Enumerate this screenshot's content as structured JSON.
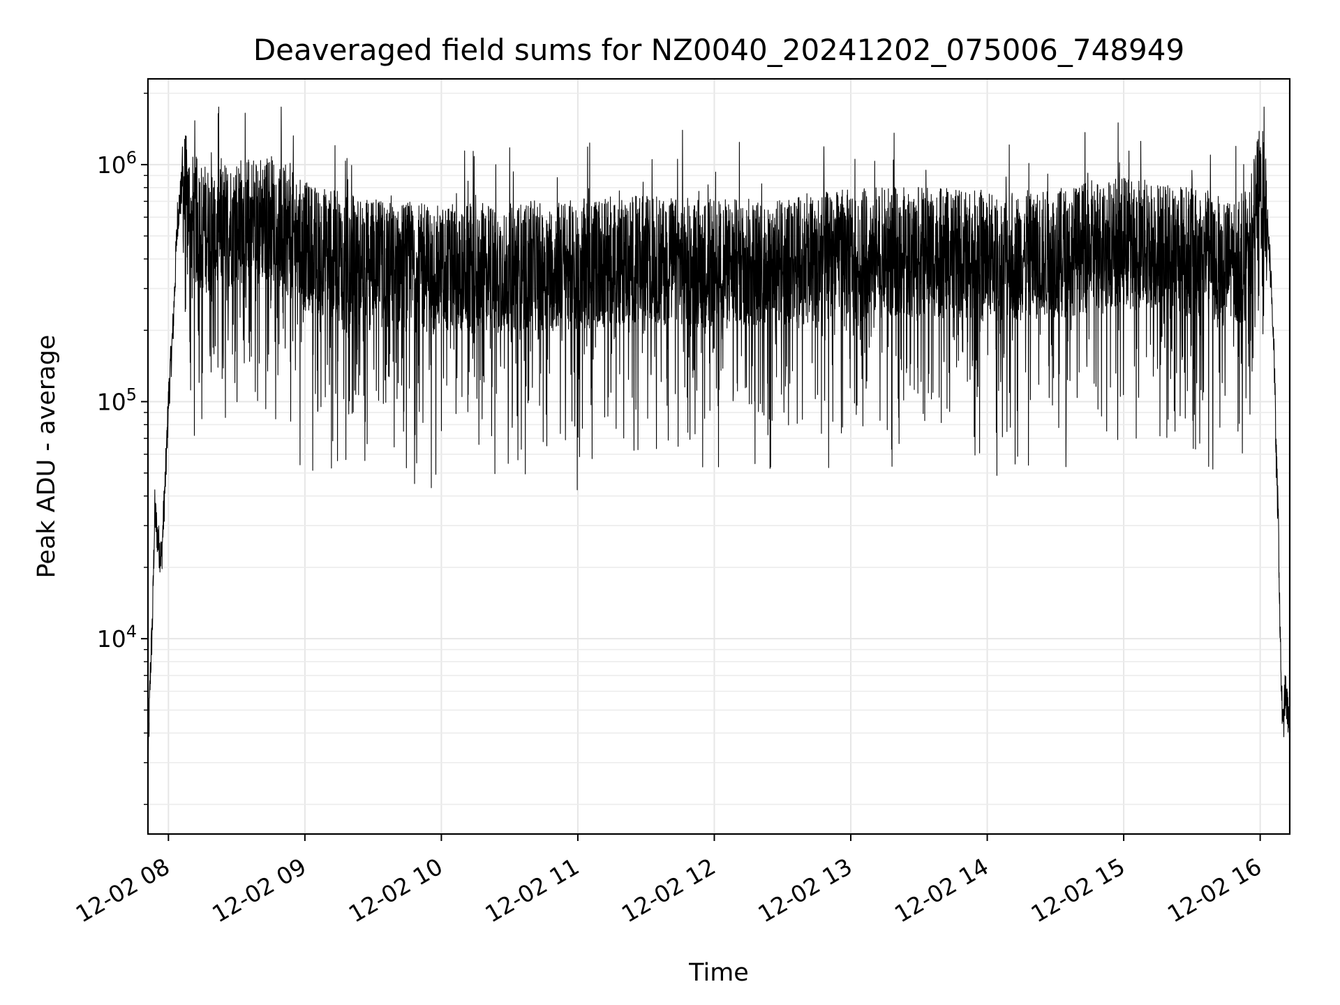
{
  "chart_data": {
    "type": "line",
    "title": "Deaveraged field sums for NZ0040_20241202_075006_748949",
    "xlabel": "Time",
    "ylabel": "Peak ADU - average",
    "yscale": "log",
    "ylim": [
      1500,
      2300000
    ],
    "xlim": [
      "2024-12-02 07:51",
      "2024-12-02 16:13"
    ],
    "grid": true,
    "x_ticks": [
      "12-02 08",
      "12-02 09",
      "12-02 10",
      "12-02 11",
      "12-02 12",
      "12-02 13",
      "12-02 14",
      "12-02 15",
      "12-02 16"
    ],
    "y_ticks": [
      {
        "value": 10000,
        "base": "10",
        "exp": "4"
      },
      {
        "value": 100000,
        "base": "10",
        "exp": "5"
      },
      {
        "value": 1000000,
        "base": "10",
        "exp": "6"
      }
    ],
    "line_color": "#000000",
    "series": [
      {
        "x": [
          "07:51",
          "07:52",
          "07:53",
          "07:54",
          "07:55",
          "07:56",
          "07:57",
          "07:58",
          "07:59",
          "08:00",
          "08:02",
          "08:04",
          "08:06",
          "08:08",
          "08:10",
          "08:15",
          "08:20",
          "08:30",
          "08:45",
          "09:00",
          "09:30",
          "10:00",
          "10:30",
          "11:00",
          "11:30",
          "12:00",
          "12:30",
          "13:00",
          "13:30",
          "14:00",
          "14:30",
          "15:00",
          "15:30",
          "15:45",
          "15:55",
          "16:00",
          "16:02",
          "16:04",
          "16:06",
          "16:07",
          "16:08",
          "16:09",
          "16:10",
          "16:11",
          "16:12",
          "16:13"
        ],
        "y": [
          2800,
          7000,
          12000,
          35000,
          28000,
          24000,
          22000,
          35000,
          55000,
          100000,
          200000,
          600000,
          800000,
          700000,
          600000,
          550000,
          520000,
          580000,
          600000,
          450000,
          380000,
          360000,
          370000,
          380000,
          400000,
          380000,
          390000,
          420000,
          430000,
          410000,
          420000,
          480000,
          430000,
          380000,
          420000,
          800000,
          700000,
          450000,
          180000,
          60000,
          30000,
          8000,
          4000,
          6000,
          5000,
          4500
        ]
      }
    ]
  }
}
